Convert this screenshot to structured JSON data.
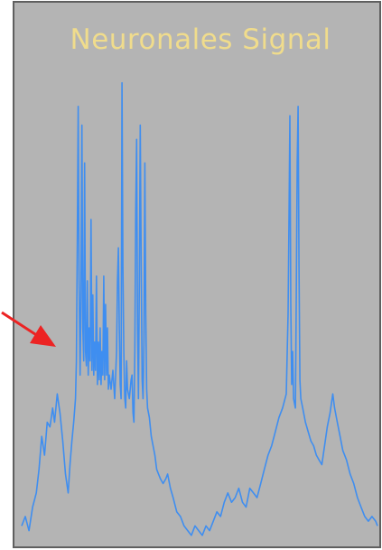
{
  "colors": {
    "panel": "#b4b4b4",
    "frame": "#5f5f5f",
    "title": "#f0dc8c",
    "signal": "#3f8ef0",
    "arrow": "#ec2323"
  },
  "chart_data": {
    "type": "line",
    "title": "Neuronales Signal",
    "xlabel": "",
    "ylabel": "",
    "grid": false,
    "legend": "none",
    "xlim": [
      0,
      390
    ],
    "ylim": [
      0,
      100
    ],
    "series": [
      {
        "values": [
          [
            0,
            3
          ],
          [
            4,
            5
          ],
          [
            8,
            2
          ],
          [
            12,
            7
          ],
          [
            16,
            10
          ],
          [
            19,
            15
          ],
          [
            22,
            22
          ],
          [
            25,
            18
          ],
          [
            28,
            25
          ],
          [
            31,
            24
          ],
          [
            34,
            28
          ],
          [
            36,
            25
          ],
          [
            39,
            31
          ],
          [
            42,
            27
          ],
          [
            45,
            21
          ],
          [
            48,
            14
          ],
          [
            51,
            10
          ],
          [
            53,
            16
          ],
          [
            55,
            21
          ],
          [
            57,
            25
          ],
          [
            59,
            30
          ],
          [
            60,
            38
          ],
          [
            61,
            63
          ],
          [
            62,
            92
          ],
          [
            63,
            55
          ],
          [
            64,
            35
          ],
          [
            65,
            52
          ],
          [
            66,
            88
          ],
          [
            67,
            45
          ],
          [
            68,
            38
          ],
          [
            69,
            80
          ],
          [
            70,
            40
          ],
          [
            71,
            37
          ],
          [
            72,
            55
          ],
          [
            73,
            35
          ],
          [
            74,
            45
          ],
          [
            75,
            38
          ],
          [
            76,
            68
          ],
          [
            77,
            36
          ],
          [
            78,
            52
          ],
          [
            79,
            35
          ],
          [
            80,
            42
          ],
          [
            81,
            36
          ],
          [
            82,
            56
          ],
          [
            83,
            33
          ],
          [
            84,
            42
          ],
          [
            85,
            34
          ],
          [
            86,
            45
          ],
          [
            87,
            33
          ],
          [
            88,
            40
          ],
          [
            89,
            35
          ],
          [
            90,
            56
          ],
          [
            91,
            34
          ],
          [
            92,
            50
          ],
          [
            93,
            35
          ],
          [
            94,
            45
          ],
          [
            95,
            32
          ],
          [
            96,
            35
          ],
          [
            98,
            32
          ],
          [
            100,
            36
          ],
          [
            102,
            30
          ],
          [
            104,
            40
          ],
          [
            105,
            55
          ],
          [
            106,
            62
          ],
          [
            107,
            45
          ],
          [
            108,
            33
          ],
          [
            109,
            30
          ],
          [
            110,
            97
          ],
          [
            111,
            58
          ],
          [
            112,
            40
          ],
          [
            113,
            30
          ],
          [
            114,
            28
          ],
          [
            115,
            38
          ],
          [
            116,
            32
          ],
          [
            118,
            30
          ],
          [
            120,
            34
          ],
          [
            121,
            35
          ],
          [
            122,
            27
          ],
          [
            123,
            25
          ],
          [
            124,
            40
          ],
          [
            125,
            70
          ],
          [
            126,
            85
          ],
          [
            127,
            45
          ],
          [
            128,
            30
          ],
          [
            129,
            55
          ],
          [
            130,
            88
          ],
          [
            131,
            60
          ],
          [
            132,
            34
          ],
          [
            133,
            30
          ],
          [
            134,
            42
          ],
          [
            135,
            80
          ],
          [
            136,
            48
          ],
          [
            137,
            32
          ],
          [
            138,
            28
          ],
          [
            140,
            26
          ],
          [
            142,
            22
          ],
          [
            144,
            20
          ],
          [
            146,
            18
          ],
          [
            148,
            15
          ],
          [
            150,
            14
          ],
          [
            152,
            13
          ],
          [
            155,
            12
          ],
          [
            158,
            13
          ],
          [
            160,
            14
          ],
          [
            163,
            11
          ],
          [
            166,
            9
          ],
          [
            170,
            6
          ],
          [
            174,
            5
          ],
          [
            178,
            3
          ],
          [
            182,
            2
          ],
          [
            186,
            1
          ],
          [
            190,
            3
          ],
          [
            194,
            2
          ],
          [
            198,
            1
          ],
          [
            202,
            3
          ],
          [
            206,
            2
          ],
          [
            210,
            4
          ],
          [
            214,
            6
          ],
          [
            218,
            5
          ],
          [
            222,
            8
          ],
          [
            226,
            10
          ],
          [
            230,
            8
          ],
          [
            234,
            9
          ],
          [
            238,
            11
          ],
          [
            242,
            8
          ],
          [
            246,
            7
          ],
          [
            250,
            11
          ],
          [
            254,
            10
          ],
          [
            258,
            9
          ],
          [
            262,
            12
          ],
          [
            266,
            15
          ],
          [
            270,
            18
          ],
          [
            274,
            20
          ],
          [
            278,
            23
          ],
          [
            282,
            26
          ],
          [
            286,
            28
          ],
          [
            290,
            31
          ],
          [
            292,
            48
          ],
          [
            293,
            68
          ],
          [
            294,
            90
          ],
          [
            295,
            50
          ],
          [
            296,
            33
          ],
          [
            297,
            40
          ],
          [
            298,
            30
          ],
          [
            300,
            28
          ],
          [
            301,
            52
          ],
          [
            302,
            80
          ],
          [
            303,
            92
          ],
          [
            304,
            58
          ],
          [
            305,
            34
          ],
          [
            306,
            30
          ],
          [
            308,
            28
          ],
          [
            311,
            25
          ],
          [
            314,
            23
          ],
          [
            317,
            21
          ],
          [
            320,
            20
          ],
          [
            323,
            18
          ],
          [
            326,
            17
          ],
          [
            329,
            16
          ],
          [
            332,
            20
          ],
          [
            335,
            24
          ],
          [
            338,
            27
          ],
          [
            341,
            31
          ],
          [
            343,
            28
          ],
          [
            346,
            25
          ],
          [
            349,
            22
          ],
          [
            352,
            19
          ],
          [
            356,
            17
          ],
          [
            360,
            14
          ],
          [
            364,
            12
          ],
          [
            368,
            9
          ],
          [
            372,
            7
          ],
          [
            376,
            5
          ],
          [
            380,
            4
          ],
          [
            384,
            5
          ],
          [
            388,
            4
          ],
          [
            390,
            3
          ]
        ]
      }
    ]
  }
}
